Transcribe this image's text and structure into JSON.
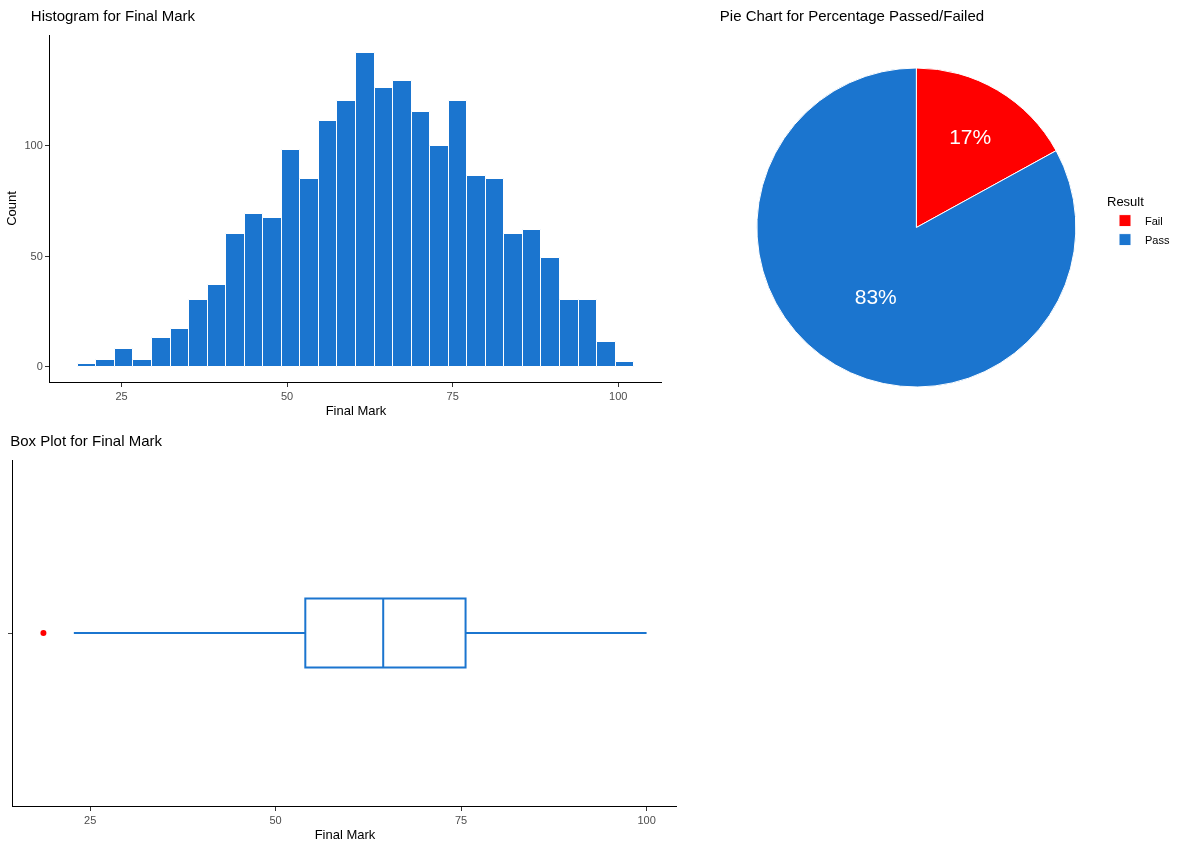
{
  "chart_data": [
    {
      "type": "histogram",
      "title": "Histogram for Final Mark",
      "xlabel": "Final Mark",
      "ylabel": "Count",
      "bins": [
        18.4,
        21.2,
        24,
        26.8,
        29.6,
        32.4,
        35.2,
        38,
        40.8,
        43.6,
        46.4,
        49.2,
        52,
        54.8,
        57.6,
        60.4,
        63.2,
        66,
        68.8,
        71.6,
        74.4,
        77.2,
        80,
        82.8,
        85.6,
        88.4,
        91.2,
        94,
        96.8,
        99.6,
        102.4
      ],
      "values": [
        1,
        3,
        8,
        3,
        13,
        17,
        30,
        37,
        60,
        69,
        67,
        98,
        85,
        111,
        120,
        142,
        126,
        129,
        115,
        100,
        120,
        86,
        85,
        60,
        62,
        49,
        30,
        30,
        11,
        2
      ],
      "color": "#1b75cf",
      "xlim": [
        14.2,
        106.6
      ],
      "xticks": [
        25,
        50,
        75,
        100
      ],
      "ylim": [
        -7,
        150
      ],
      "yticks": [
        0,
        50,
        100
      ],
      "grid": false
    },
    {
      "type": "pie",
      "title": "Pie Chart for Percentage Passed/Failed",
      "legend_title": "Result",
      "categories": [
        "Fail",
        "Pass"
      ],
      "values": [
        17,
        83
      ],
      "colors": [
        "#ff0000",
        "#1b75cf"
      ],
      "value_labels": [
        "17%",
        "83%"
      ],
      "legend": "right"
    },
    {
      "type": "box",
      "title": "Box Plot for Final Mark",
      "xlabel": "Final Mark",
      "orientation": "horizontal",
      "categories": [
        null
      ],
      "series": [
        {
          "type": "box",
          "color": "#1b75cf",
          "boxes": [
            {
              "low": 22.8,
              "q1": 54,
              "median": 64.5,
              "q3": 75.6,
              "high": 100
            }
          ]
        },
        {
          "type": "scatter",
          "color": "#ff0000",
          "values": [
            18.7
          ]
        }
      ],
      "xlim": [
        14.6,
        104.1
      ],
      "xticks": [
        25,
        50,
        75,
        100
      ],
      "grid": false
    }
  ]
}
